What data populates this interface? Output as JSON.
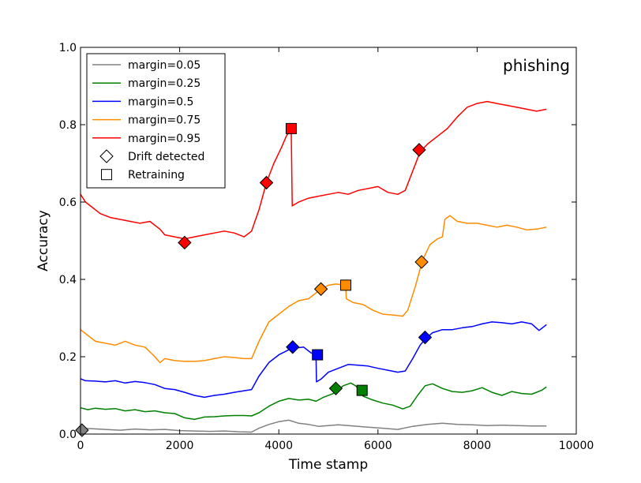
{
  "chart_data": {
    "type": "line",
    "title": "phishing",
    "xlabel": "Time stamp",
    "ylabel": "Accuracy",
    "xlim": [
      0,
      10000
    ],
    "ylim": [
      0.0,
      1.0
    ],
    "x_ticks": [
      0,
      2000,
      4000,
      6000,
      8000,
      10000
    ],
    "x_tick_labels": [
      "0",
      "2000",
      "4000",
      "6000",
      "8000",
      "10000"
    ],
    "y_ticks": [
      0.0,
      0.2,
      0.4,
      0.6,
      0.8,
      1.0
    ],
    "y_tick_labels": [
      "0.0",
      "0.2",
      "0.4",
      "0.6",
      "0.8",
      "1.0"
    ],
    "grid": false,
    "legend_position": "top-left",
    "legend": {
      "series_labels": [
        "margin=0.05",
        "margin=0.25",
        "margin=0.5",
        "margin=0.75",
        "margin=0.95"
      ],
      "drift_label": "Drift detected",
      "retrain_label": "Retraining"
    },
    "series": [
      {
        "name": "margin=0.05",
        "color": "#808080",
        "points": [
          [
            0,
            0.015
          ],
          [
            200,
            0.014
          ],
          [
            500,
            0.012
          ],
          [
            800,
            0.01
          ],
          [
            1100,
            0.013
          ],
          [
            1400,
            0.011
          ],
          [
            1700,
            0.012
          ],
          [
            2000,
            0.009
          ],
          [
            2300,
            0.008
          ],
          [
            2600,
            0.007
          ],
          [
            2900,
            0.008
          ],
          [
            3200,
            0.006
          ],
          [
            3450,
            0.005
          ],
          [
            3600,
            0.015
          ],
          [
            3800,
            0.025
          ],
          [
            4000,
            0.032
          ],
          [
            4200,
            0.036
          ],
          [
            4400,
            0.028
          ],
          [
            4600,
            0.025
          ],
          [
            4800,
            0.02
          ],
          [
            5000,
            0.022
          ],
          [
            5200,
            0.024
          ],
          [
            5500,
            0.021
          ],
          [
            5800,
            0.018
          ],
          [
            6100,
            0.015
          ],
          [
            6400,
            0.012
          ],
          [
            6700,
            0.02
          ],
          [
            7000,
            0.025
          ],
          [
            7300,
            0.028
          ],
          [
            7600,
            0.025
          ],
          [
            7900,
            0.024
          ],
          [
            8200,
            0.022
          ],
          [
            8500,
            0.023
          ],
          [
            8800,
            0.022
          ],
          [
            9100,
            0.021
          ],
          [
            9400,
            0.021
          ]
        ],
        "drift": [
          [
            30,
            0.01
          ]
        ],
        "retrain": []
      },
      {
        "name": "margin=0.25",
        "color": "#008000",
        "points": [
          [
            0,
            0.068
          ],
          [
            150,
            0.063
          ],
          [
            300,
            0.067
          ],
          [
            500,
            0.064
          ],
          [
            700,
            0.066
          ],
          [
            900,
            0.06
          ],
          [
            1100,
            0.063
          ],
          [
            1300,
            0.058
          ],
          [
            1500,
            0.06
          ],
          [
            1700,
            0.055
          ],
          [
            1900,
            0.053
          ],
          [
            2100,
            0.042
          ],
          [
            2300,
            0.038
          ],
          [
            2500,
            0.044
          ],
          [
            2700,
            0.045
          ],
          [
            2900,
            0.047
          ],
          [
            3100,
            0.048
          ],
          [
            3300,
            0.048
          ],
          [
            3450,
            0.047
          ],
          [
            3600,
            0.055
          ],
          [
            3800,
            0.072
          ],
          [
            4000,
            0.085
          ],
          [
            4200,
            0.092
          ],
          [
            4400,
            0.088
          ],
          [
            4600,
            0.09
          ],
          [
            4750,
            0.085
          ],
          [
            4900,
            0.095
          ],
          [
            5100,
            0.105
          ],
          [
            5300,
            0.125
          ],
          [
            5450,
            0.132
          ],
          [
            5550,
            0.125
          ],
          [
            5650,
            0.11
          ],
          [
            5700,
            0.098
          ],
          [
            5900,
            0.088
          ],
          [
            6100,
            0.08
          ],
          [
            6300,
            0.075
          ],
          [
            6500,
            0.065
          ],
          [
            6650,
            0.072
          ],
          [
            6800,
            0.1
          ],
          [
            6950,
            0.125
          ],
          [
            7100,
            0.13
          ],
          [
            7300,
            0.118
          ],
          [
            7500,
            0.11
          ],
          [
            7700,
            0.108
          ],
          [
            7900,
            0.112
          ],
          [
            8100,
            0.12
          ],
          [
            8300,
            0.108
          ],
          [
            8500,
            0.1
          ],
          [
            8700,
            0.11
          ],
          [
            8900,
            0.105
          ],
          [
            9100,
            0.103
          ],
          [
            9300,
            0.113
          ],
          [
            9400,
            0.122
          ]
        ],
        "drift": [
          [
            5150,
            0.118
          ]
        ],
        "retrain": [
          [
            5680,
            0.113
          ]
        ]
      },
      {
        "name": "margin=0.5",
        "color": "#0000ff",
        "points": [
          [
            0,
            0.143
          ],
          [
            100,
            0.138
          ],
          [
            300,
            0.137
          ],
          [
            500,
            0.135
          ],
          [
            700,
            0.138
          ],
          [
            900,
            0.132
          ],
          [
            1100,
            0.136
          ],
          [
            1300,
            0.133
          ],
          [
            1500,
            0.128
          ],
          [
            1700,
            0.118
          ],
          [
            1900,
            0.115
          ],
          [
            2100,
            0.108
          ],
          [
            2300,
            0.1
          ],
          [
            2500,
            0.095
          ],
          [
            2700,
            0.1
          ],
          [
            2900,
            0.103
          ],
          [
            3100,
            0.108
          ],
          [
            3300,
            0.112
          ],
          [
            3450,
            0.115
          ],
          [
            3600,
            0.15
          ],
          [
            3800,
            0.185
          ],
          [
            4000,
            0.205
          ],
          [
            4200,
            0.218
          ],
          [
            4300,
            0.222
          ],
          [
            4500,
            0.225
          ],
          [
            4650,
            0.21
          ],
          [
            4750,
            0.205
          ],
          [
            4760,
            0.135
          ],
          [
            4850,
            0.142
          ],
          [
            5000,
            0.16
          ],
          [
            5200,
            0.17
          ],
          [
            5400,
            0.18
          ],
          [
            5600,
            0.178
          ],
          [
            5800,
            0.176
          ],
          [
            6000,
            0.17
          ],
          [
            6200,
            0.165
          ],
          [
            6400,
            0.16
          ],
          [
            6550,
            0.163
          ],
          [
            6700,
            0.195
          ],
          [
            6850,
            0.23
          ],
          [
            6950,
            0.245
          ],
          [
            7100,
            0.262
          ],
          [
            7300,
            0.27
          ],
          [
            7500,
            0.27
          ],
          [
            7700,
            0.275
          ],
          [
            7900,
            0.278
          ],
          [
            8100,
            0.285
          ],
          [
            8300,
            0.29
          ],
          [
            8500,
            0.288
          ],
          [
            8700,
            0.285
          ],
          [
            8900,
            0.29
          ],
          [
            9100,
            0.285
          ],
          [
            9250,
            0.268
          ],
          [
            9400,
            0.283
          ]
        ],
        "drift": [
          [
            4280,
            0.225
          ],
          [
            6950,
            0.25
          ]
        ],
        "retrain": [
          [
            4780,
            0.205
          ]
        ]
      },
      {
        "name": "margin=0.75",
        "color": "#ff8c00",
        "points": [
          [
            0,
            0.27
          ],
          [
            150,
            0.255
          ],
          [
            300,
            0.24
          ],
          [
            500,
            0.235
          ],
          [
            700,
            0.23
          ],
          [
            900,
            0.24
          ],
          [
            1100,
            0.23
          ],
          [
            1300,
            0.225
          ],
          [
            1500,
            0.2
          ],
          [
            1600,
            0.185
          ],
          [
            1700,
            0.195
          ],
          [
            1900,
            0.19
          ],
          [
            2100,
            0.188
          ],
          [
            2300,
            0.188
          ],
          [
            2500,
            0.19
          ],
          [
            2700,
            0.195
          ],
          [
            2900,
            0.2
          ],
          [
            3100,
            0.198
          ],
          [
            3300,
            0.195
          ],
          [
            3450,
            0.195
          ],
          [
            3600,
            0.24
          ],
          [
            3800,
            0.29
          ],
          [
            4000,
            0.31
          ],
          [
            4200,
            0.33
          ],
          [
            4400,
            0.345
          ],
          [
            4600,
            0.35
          ],
          [
            4800,
            0.37
          ],
          [
            5000,
            0.385
          ],
          [
            5150,
            0.388
          ],
          [
            5350,
            0.385
          ],
          [
            5360,
            0.35
          ],
          [
            5500,
            0.34
          ],
          [
            5700,
            0.335
          ],
          [
            5900,
            0.32
          ],
          [
            6100,
            0.31
          ],
          [
            6300,
            0.308
          ],
          [
            6500,
            0.305
          ],
          [
            6600,
            0.32
          ],
          [
            6750,
            0.38
          ],
          [
            6900,
            0.45
          ],
          [
            7050,
            0.49
          ],
          [
            7200,
            0.505
          ],
          [
            7300,
            0.51
          ],
          [
            7350,
            0.555
          ],
          [
            7450,
            0.565
          ],
          [
            7600,
            0.55
          ],
          [
            7800,
            0.545
          ],
          [
            8000,
            0.545
          ],
          [
            8200,
            0.54
          ],
          [
            8400,
            0.535
          ],
          [
            8600,
            0.54
          ],
          [
            8800,
            0.535
          ],
          [
            9000,
            0.528
          ],
          [
            9200,
            0.53
          ],
          [
            9400,
            0.535
          ]
        ],
        "drift": [
          [
            4850,
            0.375
          ],
          [
            6880,
            0.445
          ]
        ],
        "retrain": [
          [
            5350,
            0.385
          ]
        ]
      },
      {
        "name": "margin=0.95",
        "color": "#ff0000",
        "points": [
          [
            0,
            0.62
          ],
          [
            100,
            0.6
          ],
          [
            250,
            0.585
          ],
          [
            400,
            0.57
          ],
          [
            600,
            0.56
          ],
          [
            800,
            0.555
          ],
          [
            1000,
            0.55
          ],
          [
            1200,
            0.545
          ],
          [
            1400,
            0.55
          ],
          [
            1600,
            0.53
          ],
          [
            1700,
            0.515
          ],
          [
            1900,
            0.51
          ],
          [
            2100,
            0.505
          ],
          [
            2300,
            0.51
          ],
          [
            2500,
            0.515
          ],
          [
            2700,
            0.52
          ],
          [
            2900,
            0.525
          ],
          [
            3100,
            0.52
          ],
          [
            3300,
            0.51
          ],
          [
            3450,
            0.525
          ],
          [
            3600,
            0.58
          ],
          [
            3750,
            0.65
          ],
          [
            3900,
            0.7
          ],
          [
            4050,
            0.74
          ],
          [
            4150,
            0.77
          ],
          [
            4250,
            0.79
          ],
          [
            4270,
            0.59
          ],
          [
            4400,
            0.6
          ],
          [
            4600,
            0.61
          ],
          [
            4800,
            0.615
          ],
          [
            5000,
            0.62
          ],
          [
            5200,
            0.625
          ],
          [
            5400,
            0.62
          ],
          [
            5600,
            0.63
          ],
          [
            5800,
            0.635
          ],
          [
            6000,
            0.64
          ],
          [
            6200,
            0.625
          ],
          [
            6400,
            0.62
          ],
          [
            6550,
            0.63
          ],
          [
            6700,
            0.68
          ],
          [
            6850,
            0.73
          ],
          [
            7000,
            0.75
          ],
          [
            7200,
            0.77
          ],
          [
            7400,
            0.79
          ],
          [
            7600,
            0.82
          ],
          [
            7800,
            0.845
          ],
          [
            8000,
            0.855
          ],
          [
            8200,
            0.86
          ],
          [
            8400,
            0.855
          ],
          [
            8600,
            0.85
          ],
          [
            8800,
            0.845
          ],
          [
            9000,
            0.84
          ],
          [
            9200,
            0.835
          ],
          [
            9400,
            0.84
          ]
        ],
        "drift": [
          [
            2100,
            0.495
          ],
          [
            3750,
            0.65
          ],
          [
            6830,
            0.735
          ]
        ],
        "retrain": [
          [
            4250,
            0.79
          ]
        ]
      }
    ]
  }
}
